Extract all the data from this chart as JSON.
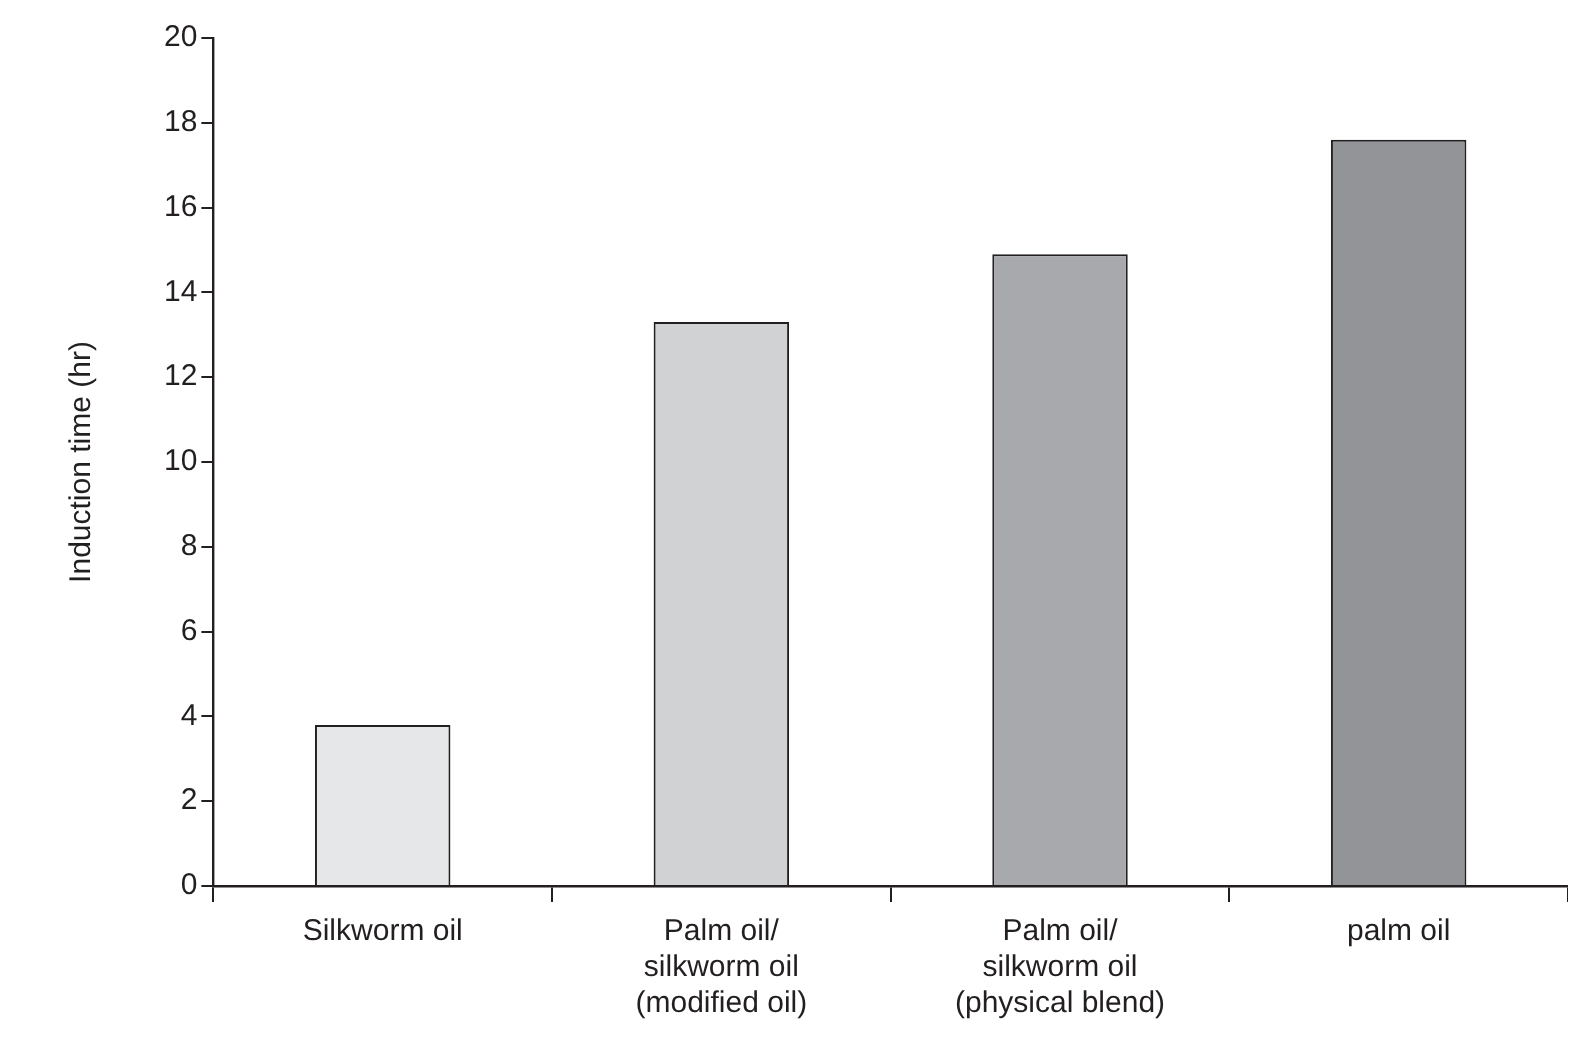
{
  "chart_data": {
    "type": "bar",
    "ylabel": "Induction time (hr)",
    "categories": [
      "Silkworm oil",
      "Palm oil/ silkworm oil (modified oil)",
      "Palm oil/ silkworm oil (physical blend)",
      "palm oil"
    ],
    "values": [
      3.8,
      13.3,
      14.9,
      17.6
    ],
    "colors": [
      "#e6e7e9",
      "#d1d2d4",
      "#a8a9ac",
      "#939498"
    ],
    "ylim": [
      0,
      20
    ],
    "yticks": [
      0,
      2,
      4,
      6,
      8,
      10,
      12,
      14,
      16,
      18,
      20
    ],
    "grid": false,
    "legend": false
  }
}
